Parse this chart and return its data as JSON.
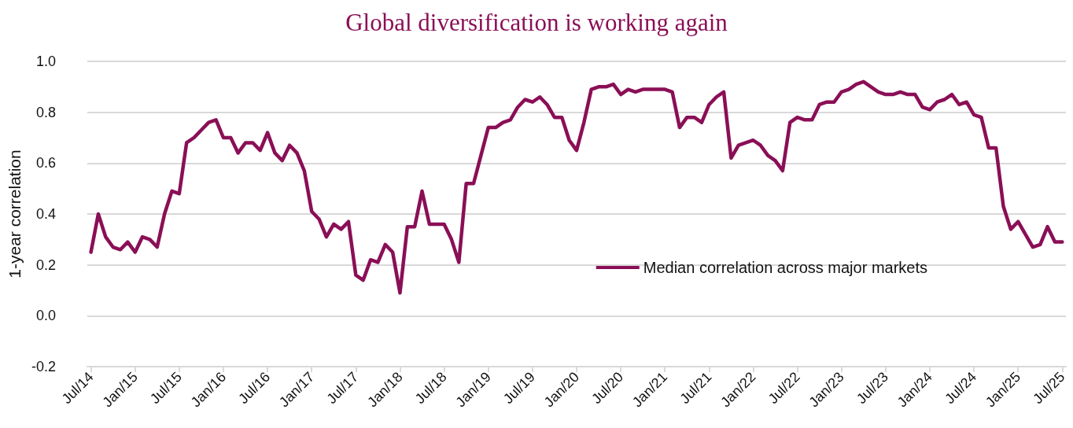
{
  "chart_data": {
    "type": "line",
    "title": "Global diversification is working again",
    "ylabel": "1-year correlation",
    "categories": [
      "Jul/14",
      null,
      null,
      null,
      null,
      null,
      "Jan/15",
      null,
      null,
      null,
      null,
      null,
      "Jul/15",
      null,
      null,
      null,
      null,
      null,
      "Jan/16",
      null,
      null,
      null,
      null,
      null,
      "Jul/16",
      null,
      null,
      null,
      null,
      null,
      "Jan/17",
      null,
      null,
      null,
      null,
      null,
      "Jul/17",
      null,
      null,
      null,
      null,
      null,
      "Jan/18",
      null,
      null,
      null,
      null,
      null,
      "Jul/18",
      null,
      null,
      null,
      null,
      null,
      "Jan/19",
      null,
      null,
      null,
      null,
      null,
      "Jul/19",
      null,
      null,
      null,
      null,
      null,
      "Jan/20",
      null,
      null,
      null,
      null,
      null,
      "Jul/20",
      null,
      null,
      null,
      null,
      null,
      "Jan/21",
      null,
      null,
      null,
      null,
      null,
      "Jul/21",
      null,
      null,
      null,
      null,
      null,
      "Jan/22",
      null,
      null,
      null,
      null,
      null,
      "Jul/22",
      null,
      null,
      null,
      null,
      null,
      "Jan/23",
      null,
      null,
      null,
      null,
      null,
      "Jul/23",
      null,
      null,
      null,
      null,
      null,
      "Jan/24",
      null,
      null,
      null,
      null,
      null,
      "Jul/24",
      null,
      null,
      null,
      null,
      null,
      "Jan/25",
      null,
      null,
      null,
      null,
      null,
      "Jul/25"
    ],
    "series": [
      {
        "name": "Median correlation across major markets",
        "color": "#8a0f56",
        "values": [
          0.25,
          0.4,
          0.31,
          0.27,
          0.26,
          0.29,
          0.25,
          0.31,
          0.3,
          0.27,
          0.4,
          0.49,
          0.48,
          0.68,
          0.7,
          0.73,
          0.76,
          0.77,
          0.7,
          0.7,
          0.64,
          0.68,
          0.68,
          0.65,
          0.72,
          0.64,
          0.61,
          0.67,
          0.64,
          0.57,
          0.41,
          0.38,
          0.31,
          0.36,
          0.34,
          0.37,
          0.16,
          0.14,
          0.22,
          0.21,
          0.28,
          0.25,
          0.09,
          0.35,
          0.35,
          0.49,
          0.36,
          0.36,
          0.36,
          0.3,
          0.21,
          0.52,
          0.52,
          0.63,
          0.74,
          0.74,
          0.76,
          0.77,
          0.82,
          0.85,
          0.84,
          0.86,
          0.83,
          0.78,
          0.78,
          0.69,
          0.65,
          0.76,
          0.89,
          0.9,
          0.9,
          0.91,
          0.87,
          0.89,
          0.88,
          0.89,
          0.89,
          0.89,
          0.89,
          0.88,
          0.74,
          0.78,
          0.78,
          0.76,
          0.83,
          0.86,
          0.88,
          0.62,
          0.67,
          0.68,
          0.69,
          0.67,
          0.63,
          0.61,
          0.57,
          0.76,
          0.78,
          0.77,
          0.77,
          0.83,
          0.84,
          0.84,
          0.88,
          0.89,
          0.91,
          0.92,
          0.9,
          0.88,
          0.87,
          0.87,
          0.88,
          0.87,
          0.87,
          0.82,
          0.81,
          0.84,
          0.85,
          0.87,
          0.83,
          0.84,
          0.79,
          0.78,
          0.66,
          0.66,
          0.43,
          0.34,
          0.37,
          0.32,
          0.27,
          0.28,
          0.35,
          0.29,
          0.29
        ]
      }
    ],
    "ylim": [
      -0.2,
      1.0
    ],
    "yticks": [
      {
        "value": -0.2,
        "label": "-0.2"
      },
      {
        "value": 0,
        "label": "0.0"
      },
      {
        "value": 0.2,
        "label": "0.2"
      },
      {
        "value": 0.4,
        "label": "0.4"
      },
      {
        "value": 0.6,
        "label": "0.6"
      },
      {
        "value": 0.8,
        "label": "0.8"
      },
      {
        "value": 1.0,
        "label": "1.0"
      }
    ],
    "grid": "y",
    "legend": "bottom right",
    "marker": "none",
    "line_style": "solid"
  }
}
